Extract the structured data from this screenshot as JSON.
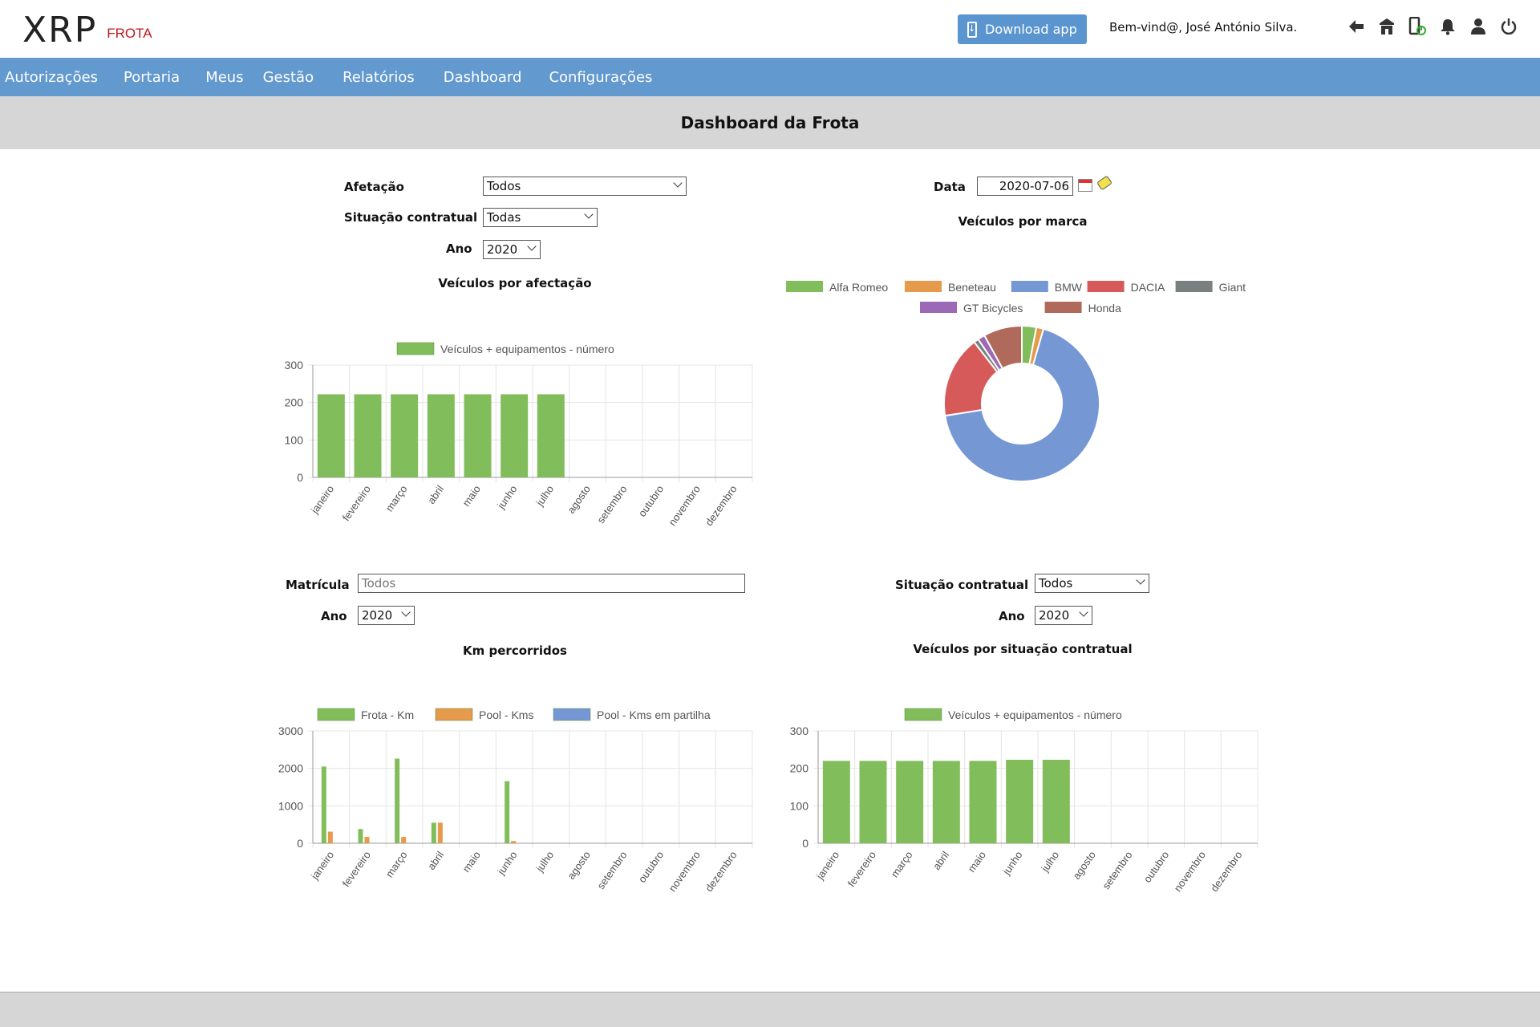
{
  "app": {
    "logo_text": "XRP",
    "logo_sub": "FROTA"
  },
  "header": {
    "download_label": "Download app",
    "welcome": "Bem-vind@, José António Silva.",
    "icons": [
      "back-arrow-icon",
      "building-icon",
      "mobile-power-icon",
      "bell-icon",
      "user-icon",
      "power-icon"
    ]
  },
  "nav": {
    "items": [
      "Autorizações",
      "Portaria",
      "Meus",
      "Gestão",
      "Relatórios",
      "Dashboard",
      "Configurações"
    ]
  },
  "page_title": "Dashboard da Frota",
  "filters1": {
    "afetacao_label": "Afetação",
    "afetacao_value": "Todos",
    "situacao_label": "Situação contratual",
    "situacao_value": "Todas",
    "ano_label": "Ano",
    "ano_value": "2020"
  },
  "filters2": {
    "data_label": "Data",
    "data_value": "2020-07-06"
  },
  "filters3": {
    "matricula_label": "Matrícula",
    "matricula_placeholder": "Todos",
    "ano_label": "Ano",
    "ano_value": "2020"
  },
  "filters4": {
    "situacao_label": "Situação contratual",
    "situacao_value": "Todos",
    "ano_label": "Ano",
    "ano_value": "2020"
  },
  "colors": {
    "green": "#82bd5c",
    "orange": "#e69a4b",
    "blue": "#7597d4",
    "red": "#d75a5a",
    "grey": "#7a7f80",
    "purple": "#9b69b5",
    "brown": "#b06a5c"
  },
  "chart_data": [
    {
      "type": "bar",
      "title": "Veículos por afectação",
      "categories": [
        "janeiro",
        "fevereiro",
        "março",
        "abril",
        "maio",
        "junho",
        "julho",
        "agosto",
        "setembro",
        "outubro",
        "novembro",
        "dezembro"
      ],
      "series": [
        {
          "name": "Veículos + equipamentos - número",
          "color": "#82bd5c",
          "values": [
            222,
            222,
            222,
            222,
            222,
            222,
            222,
            0,
            0,
            0,
            0,
            0
          ]
        }
      ],
      "yticks": [
        0,
        100,
        200,
        300
      ],
      "ylim": [
        0,
        300
      ],
      "grid": true,
      "legend": "top"
    },
    {
      "type": "pie",
      "title": "Veículos por marca",
      "labels": [
        "Alfa Romeo",
        "Beneteau",
        "BMW",
        "DACIA",
        "Giant",
        "GT Bicycles",
        "Honda"
      ],
      "colors": [
        "#82bd5c",
        "#e69a4b",
        "#7597d4",
        "#d75a5a",
        "#7a7f80",
        "#9b69b5",
        "#b06a5c"
      ],
      "values": [
        3,
        1.5,
        68,
        17,
        1,
        1.5,
        8
      ],
      "donut": true,
      "legend": "top"
    },
    {
      "type": "bar",
      "title": "Km percorridos",
      "categories": [
        "janeiro",
        "fevereiro",
        "março",
        "abril",
        "maio",
        "junho",
        "julho",
        "agosto",
        "setembro",
        "outubro",
        "novembro",
        "dezembro"
      ],
      "series": [
        {
          "name": "Frota - Km",
          "color": "#82bd5c",
          "values": [
            2050,
            380,
            2260,
            550,
            0,
            1660,
            0,
            0,
            0,
            0,
            0,
            0
          ]
        },
        {
          "name": "Pool - Kms",
          "color": "#e69a4b",
          "values": [
            310,
            170,
            170,
            550,
            0,
            60,
            0,
            0,
            0,
            0,
            0,
            0
          ]
        },
        {
          "name": "Pool - Kms em partilha",
          "color": "#7597d4",
          "values": [
            0,
            0,
            0,
            0,
            0,
            0,
            0,
            0,
            0,
            0,
            0,
            0
          ]
        }
      ],
      "yticks": [
        0,
        1000,
        2000,
        3000
      ],
      "ylim": [
        0,
        3000
      ],
      "grid": true,
      "legend": "top"
    },
    {
      "type": "bar",
      "title": "Veículos por situação contratual",
      "categories": [
        "janeiro",
        "fevereiro",
        "março",
        "abril",
        "maio",
        "junho",
        "julho",
        "agosto",
        "setembro",
        "outubro",
        "novembro",
        "dezembro"
      ],
      "series": [
        {
          "name": "Veículos + equipamentos - número",
          "color": "#82bd5c",
          "values": [
            220,
            220,
            220,
            220,
            220,
            223,
            223,
            0,
            0,
            0,
            0,
            0
          ]
        }
      ],
      "yticks": [
        0,
        100,
        200,
        300
      ],
      "ylim": [
        0,
        300
      ],
      "grid": true,
      "legend": "top"
    }
  ]
}
